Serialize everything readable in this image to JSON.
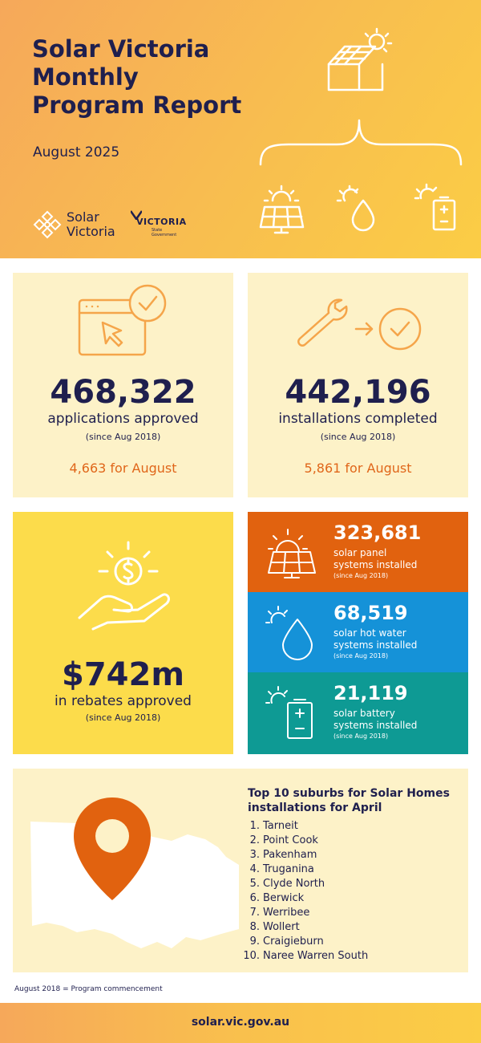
{
  "header": {
    "title_line1": "Solar Victoria",
    "title_line2": "Monthly",
    "title_line3": "Program Report",
    "subtitle": "August 2025",
    "logo_solar_line1": "Solar",
    "logo_solar_line2": "Victoria",
    "logo_vic": "VICTORIA",
    "logo_vic_sub1": "State",
    "logo_vic_sub2": "Government"
  },
  "stats": {
    "applications": {
      "value": "468,322",
      "label": "applications approved",
      "since": "(since Aug 2018)",
      "month": "4,663 for August"
    },
    "installations": {
      "value": "442,196",
      "label": "installations completed",
      "since": "(since Aug 2018)",
      "month": "5,861 for August"
    },
    "rebates": {
      "value": "$742m",
      "label": "in rebates approved",
      "since": "(since Aug 2018)"
    }
  },
  "systems": {
    "panel": {
      "value": "323,681",
      "line1": "solar panel",
      "line2": "systems installed",
      "since": "(since Aug 2018)",
      "color": "#e1620f"
    },
    "hotwater": {
      "value": "68,519",
      "line1": "solar hot water",
      "line2": "systems installed",
      "since": "(since Aug 2018)",
      "color": "#1592d8"
    },
    "battery": {
      "value": "21,119",
      "line1": "solar battery",
      "line2": "systems installed",
      "since": "(since Aug 2018)",
      "color": "#0e9a94"
    }
  },
  "suburbs": {
    "title_line1": "Top 10 suburbs for Solar Homes",
    "title_line2": "installations for April",
    "items": [
      {
        "num": "1.",
        "name": "Tarneit"
      },
      {
        "num": "2.",
        "name": "Point Cook"
      },
      {
        "num": "3.",
        "name": "Pakenham"
      },
      {
        "num": "4.",
        "name": "Truganina"
      },
      {
        "num": "5.",
        "name": "Clyde North"
      },
      {
        "num": "6.",
        "name": "Berwick"
      },
      {
        "num": "7.",
        "name": "Werribee"
      },
      {
        "num": "8.",
        "name": "Wollert"
      },
      {
        "num": "9.",
        "name": "Craigieburn"
      },
      {
        "num": "10.",
        "name": "Naree Warren South"
      }
    ]
  },
  "footnote": "August 2018 = Program commencement",
  "footer": {
    "url": "solar.vic.gov.au"
  },
  "icons": {
    "house": "solar-house-icon",
    "panel": "solar-panel-icon",
    "hotwater": "water-drop-sun-icon",
    "battery": "battery-sun-icon",
    "browser": "browser-cursor-check-icon",
    "wrench": "wrench-arrow-check-icon",
    "money": "hand-coin-icon",
    "map": "victoria-map-pin-icon"
  },
  "colors": {
    "navy": "#1f1f4e",
    "orange": "#e0661a",
    "card_light": "#fdf2c8",
    "card_yellow": "#fcdc4b"
  }
}
